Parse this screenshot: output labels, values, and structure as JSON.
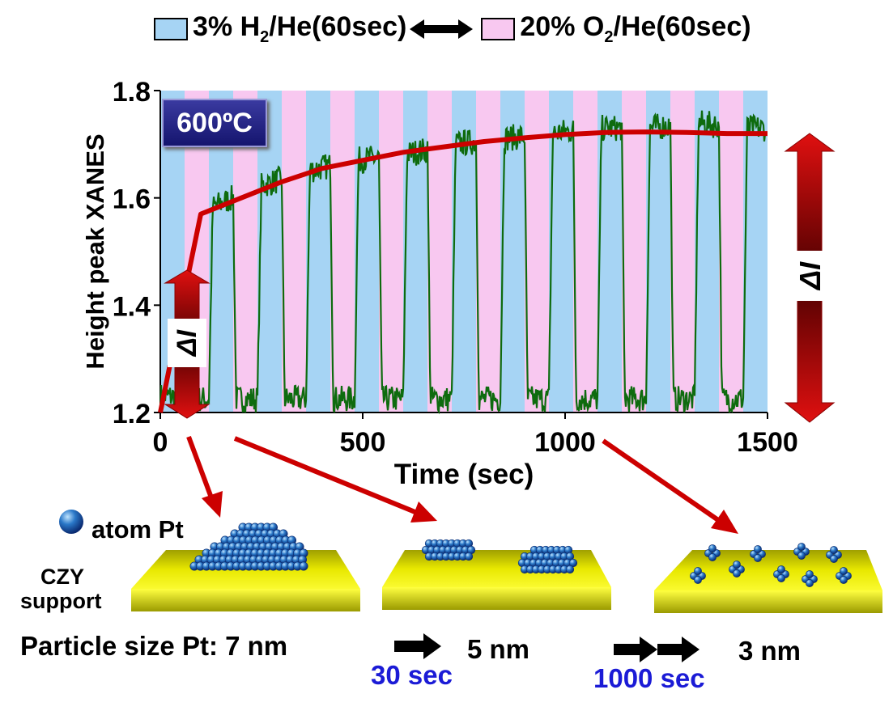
{
  "legend": {
    "h2_prefix": "3% H",
    "h2_sub": "2",
    "h2_suffix": "/He(60sec)",
    "o2_prefix": "20% O",
    "o2_sub": "2",
    "o2_suffix": "/He(60sec)"
  },
  "temperature_label": "600ºC",
  "delta_label": "ΔI",
  "colors": {
    "h2_band": "#a6d4f4",
    "o2_band": "#f8c8f0",
    "signal": "#0e6b0e",
    "trend": "#cc0000",
    "support_top": "#f0f000",
    "atom": "#2a78c8"
  },
  "chart_data": {
    "type": "line",
    "xlabel": "Time (sec)",
    "ylabel": "Height peak XANES",
    "xlim": [
      0,
      1500
    ],
    "ylim": [
      1.2,
      1.8
    ],
    "x_ticks": [
      "0",
      "500",
      "1000",
      "1500"
    ],
    "y_ticks": [
      "1.2",
      "1.4",
      "1.6",
      "1.8"
    ],
    "grid": false,
    "cycle_period_sec": 120,
    "half_cycle_sec": 60,
    "series": [
      {
        "name": "",
        "x": [
          0,
          70,
          100,
          200,
          300,
          400,
          500,
          600,
          700,
          800,
          900,
          1000,
          1100,
          1200,
          1300,
          1400,
          1500
        ],
        "values": [
          1.2,
          1.46,
          1.57,
          1.6,
          1.63,
          1.655,
          1.67,
          1.685,
          1.695,
          1.705,
          1.712,
          1.718,
          1.722,
          1.723,
          1.722,
          1.72,
          1.72
        ]
      },
      {
        "name": "",
        "x": [
          0,
          60,
          120,
          180,
          240,
          300,
          360,
          420,
          480,
          540,
          600,
          660,
          720,
          780,
          840,
          900,
          960,
          1020,
          1080,
          1140,
          1200,
          1260,
          1320,
          1380,
          1440,
          1500
        ],
        "values": [
          1.22,
          1.24,
          1.58,
          1.24,
          1.62,
          1.24,
          1.65,
          1.23,
          1.67,
          1.24,
          1.68,
          1.24,
          1.7,
          1.23,
          1.71,
          1.23,
          1.72,
          1.23,
          1.73,
          1.23,
          1.73,
          1.22,
          1.74,
          1.22,
          1.73,
          1.73
        ]
      }
    ]
  },
  "diagram": {
    "atom_label": "atom Pt",
    "support_label_1": "CZY",
    "support_label_2": "support",
    "size_prefix": "Particle size  Pt: 7 nm",
    "size_2": "5 nm",
    "size_3": "3 nm",
    "time_1": "30 sec",
    "time_2": "1000 sec"
  }
}
